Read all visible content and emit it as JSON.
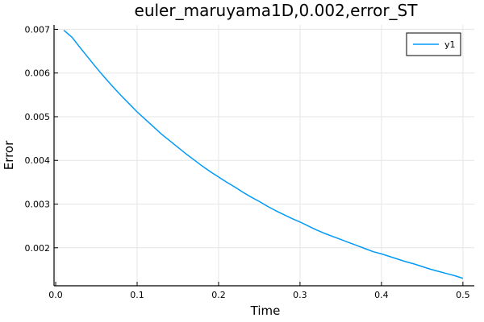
{
  "chart_data": {
    "type": "line",
    "title": "euler_maruyama1D,0.002,error_ST",
    "xlabel": "Time",
    "ylabel": "Error",
    "xlim": [
      -0.002,
      0.514
    ],
    "ylim": [
      0.00113,
      0.0071
    ],
    "grid": true,
    "legend_placement": "top-right",
    "x_ticks": [
      0.0,
      0.1,
      0.2,
      0.3,
      0.4,
      0.5
    ],
    "x_tick_labels": [
      "0.0",
      "0.1",
      "0.2",
      "0.3",
      "0.4",
      "0.5"
    ],
    "y_ticks": [
      0.002,
      0.003,
      0.004,
      0.005,
      0.006,
      0.007
    ],
    "y_tick_labels": [
      "0.002",
      "0.003",
      "0.004",
      "0.005",
      "0.006",
      "0.007"
    ],
    "series": [
      {
        "name": "y1",
        "color": "#009af9",
        "x": [
          0.01,
          0.02,
          0.03,
          0.04,
          0.05,
          0.06,
          0.07,
          0.08,
          0.09,
          0.1,
          0.11,
          0.12,
          0.13,
          0.14,
          0.15,
          0.16,
          0.17,
          0.18,
          0.19,
          0.2,
          0.21,
          0.22,
          0.23,
          0.24,
          0.25,
          0.26,
          0.27,
          0.28,
          0.29,
          0.3,
          0.31,
          0.32,
          0.33,
          0.34,
          0.35,
          0.36,
          0.37,
          0.38,
          0.39,
          0.4,
          0.41,
          0.42,
          0.43,
          0.44,
          0.45,
          0.46,
          0.47,
          0.48,
          0.49,
          0.5
        ],
        "y": [
          0.00698,
          0.00682,
          0.00658,
          0.00635,
          0.00612,
          0.0059,
          0.00569,
          0.00549,
          0.0053,
          0.00511,
          0.00494,
          0.00477,
          0.0046,
          0.00445,
          0.0043,
          0.00415,
          0.00401,
          0.00387,
          0.00374,
          0.00362,
          0.0035,
          0.00339,
          0.00327,
          0.00316,
          0.00306,
          0.00295,
          0.00285,
          0.00276,
          0.00267,
          0.00259,
          0.0025,
          0.00241,
          0.00233,
          0.00226,
          0.00219,
          0.00212,
          0.00205,
          0.00198,
          0.00191,
          0.00186,
          0.0018,
          0.00174,
          0.00168,
          0.00163,
          0.00157,
          0.00151,
          0.00146,
          0.00141,
          0.00136,
          0.0013
        ]
      }
    ]
  }
}
